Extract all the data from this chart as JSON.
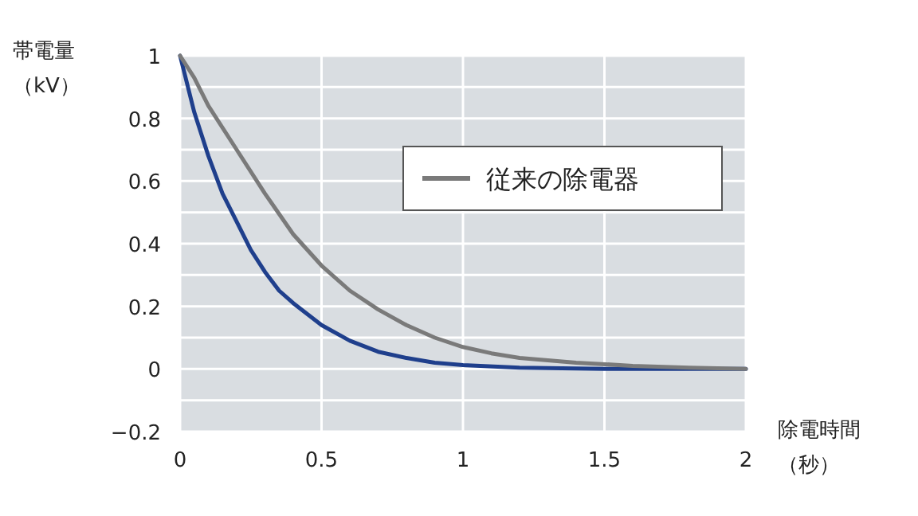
{
  "chart_data": {
    "type": "line",
    "ylabel": "帯電量（kV）",
    "xlabel": "除電時間（秒）",
    "xlim": [
      0,
      2
    ],
    "xticks": [
      0,
      0.5,
      1,
      1.5,
      2
    ],
    "ylim": [
      -0.2,
      1
    ],
    "yticks": [
      {
        "value": -0.2,
        "label": "−0.2"
      },
      {
        "value": -0.1,
        "label": null
      },
      0,
      {
        "value": 0.1,
        "label": null
      },
      0.2,
      {
        "value": 0.3,
        "label": null
      },
      0.4,
      {
        "value": 0.5,
        "label": null
      },
      0.6,
      {
        "value": 0.7,
        "label": null
      },
      0.8,
      {
        "value": 0.9,
        "label": null
      },
      1
    ],
    "grid": true,
    "legend": "top right",
    "marker": "none",
    "line_style": "solid",
    "series": [
      {
        "color": "#1f3f8c",
        "x": [
          0,
          0.05,
          0.1,
          0.15,
          0.2,
          0.25,
          0.3,
          0.35,
          0.4,
          0.5,
          0.6,
          0.7,
          0.8,
          0.9,
          1.0,
          1.2,
          1.5,
          2.0
        ],
        "values": [
          1,
          0.82,
          0.68,
          0.56,
          0.47,
          0.38,
          0.31,
          0.25,
          0.21,
          0.14,
          0.09,
          0.055,
          0.035,
          0.02,
          0.012,
          0.004,
          0,
          0
        ]
      },
      {
        "name": "従来の除電器",
        "color": "#7a7a7a",
        "x": [
          0,
          0.05,
          0.1,
          0.2,
          0.3,
          0.4,
          0.5,
          0.6,
          0.7,
          0.8,
          0.9,
          1.0,
          1.1,
          1.2,
          1.4,
          1.6,
          1.8,
          2.0
        ],
        "values": [
          1,
          0.93,
          0.84,
          0.7,
          0.56,
          0.43,
          0.33,
          0.25,
          0.19,
          0.14,
          0.1,
          0.07,
          0.05,
          0.035,
          0.02,
          0.01,
          0.004,
          0
        ]
      }
    ]
  }
}
